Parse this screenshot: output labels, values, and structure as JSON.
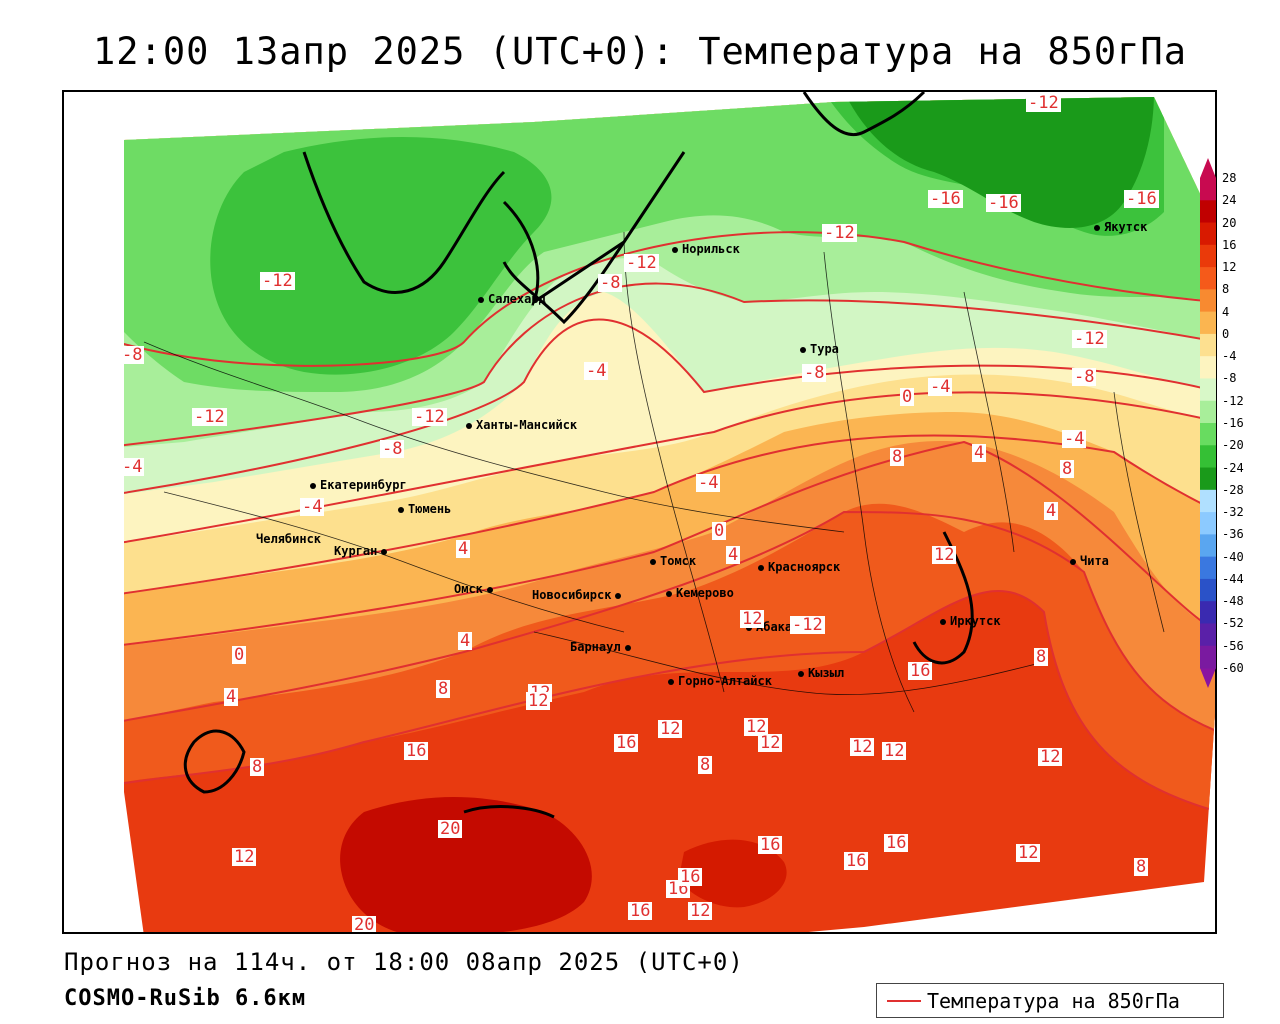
{
  "title": "12:00 13апр 2025 (UTC+0): Температура на 850гПа",
  "footer": {
    "forecast": "Прогноз на 114ч. от 18:00 08апр 2025 (UTC+0)",
    "model": "COSMO-RuSib 6.6км"
  },
  "legend": {
    "label": "Температура на 850гПа",
    "line_color": "#e03030"
  },
  "colorbar": {
    "labels": [
      "28",
      "24",
      "20",
      "16",
      "12",
      "8",
      "4",
      "0",
      "-4",
      "-8",
      "-12",
      "-16",
      "-20",
      "-24",
      "-28",
      "-32",
      "-36",
      "-40",
      "-44",
      "-48",
      "-52",
      "-56",
      "-60"
    ],
    "colors": [
      "#c80a50",
      "#c00000",
      "#d81a00",
      "#ea3a0a",
      "#f55a1a",
      "#f88a30",
      "#fbb550",
      "#fde090",
      "#fdf4c0",
      "#d8f8c8",
      "#a8ee9a",
      "#68dc60",
      "#35c035",
      "#1a9a1a",
      "#b0e0ff",
      "#8ccaff",
      "#5aa6f0",
      "#3a78e0",
      "#2a52c8",
      "#3a2ab0",
      "#5a20a8",
      "#7a1aa0",
      "#8a14a0"
    ]
  },
  "cities": [
    {
      "name": "Норильск"
    },
    {
      "name": "Якутск"
    },
    {
      "name": "Салехард"
    },
    {
      "name": "Тура"
    },
    {
      "name": "Ханты-Мансийск"
    },
    {
      "name": "Екатеринбург"
    },
    {
      "name": "Тюмень"
    },
    {
      "name": "Челябинск"
    },
    {
      "name": "Курган"
    },
    {
      "name": "Омск"
    },
    {
      "name": "Томск"
    },
    {
      "name": "Красноярск"
    },
    {
      "name": "Новосибирск"
    },
    {
      "name": "Кемерово"
    },
    {
      "name": "Абакан"
    },
    {
      "name": "Барнаул"
    },
    {
      "name": "Горно-Алтайск"
    },
    {
      "name": "Кызыл"
    },
    {
      "name": "Иркутск"
    },
    {
      "name": "Чита"
    }
  ],
  "isotherm_labels": [
    "-12",
    "-16",
    "-16",
    "-16",
    "-12",
    "-12",
    "-8",
    "-12",
    "-8",
    "-8",
    "-4",
    "-12",
    "-8",
    "-12",
    "-12",
    "-8",
    "-4",
    "-4",
    "0",
    "-4",
    "-4",
    "0",
    "-4",
    "8",
    "4",
    "4",
    "4",
    "8",
    "4",
    "12",
    "8",
    "12",
    "12",
    "-12",
    "0",
    "4",
    "8",
    "12",
    "8",
    "4",
    "16",
    "12",
    "12",
    "12",
    "16",
    "12",
    "12",
    "12",
    "8",
    "20",
    "16",
    "16",
    "16",
    "12",
    "16",
    "16",
    "16",
    "16",
    "12",
    "12",
    "8",
    "20"
  ]
}
